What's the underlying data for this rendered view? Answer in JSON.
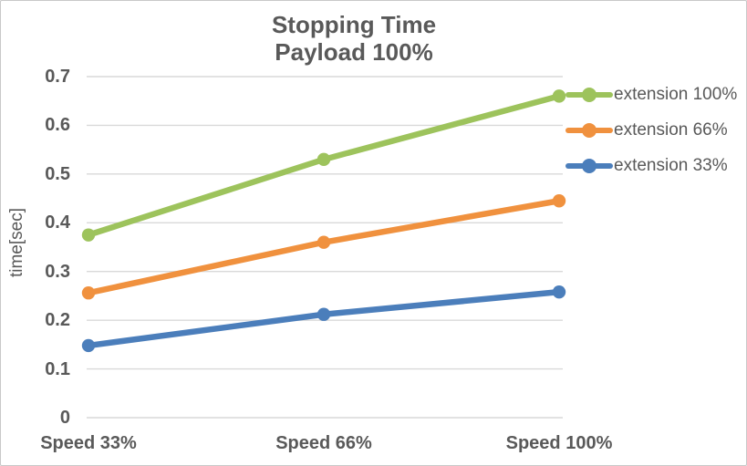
{
  "chart": {
    "title_line1": "Stopping Time",
    "title_line2": "Payload 100%",
    "ylabel": "time[sec]"
  },
  "colors": {
    "text": "#595959",
    "gridline": "#d9d9d9",
    "border": "#c8c8c8",
    "background": "#ffffff"
  },
  "chart_data": {
    "type": "line",
    "title": "Stopping Time Payload 100%",
    "xlabel": "",
    "ylabel": "time[sec]",
    "categories": [
      "Speed 33%",
      "Speed 66%",
      "Speed 100%"
    ],
    "series": [
      {
        "name": "extension 100%",
        "color": "#9dc35c",
        "values": [
          0.375,
          0.53,
          0.66
        ]
      },
      {
        "name": "extension 66%",
        "color": "#f0913e",
        "values": [
          0.256,
          0.36,
          0.445
        ]
      },
      {
        "name": "extension 33%",
        "color": "#4b7ebb",
        "values": [
          0.148,
          0.212,
          0.258
        ]
      }
    ],
    "ylim": [
      0,
      0.7
    ],
    "y_tick_labels": [
      "0",
      "0.1",
      "0.2",
      "0.3",
      "0.4",
      "0.5",
      "0.6",
      "0.7"
    ],
    "grid": true,
    "legend_position": "right",
    "marker": "circle"
  }
}
